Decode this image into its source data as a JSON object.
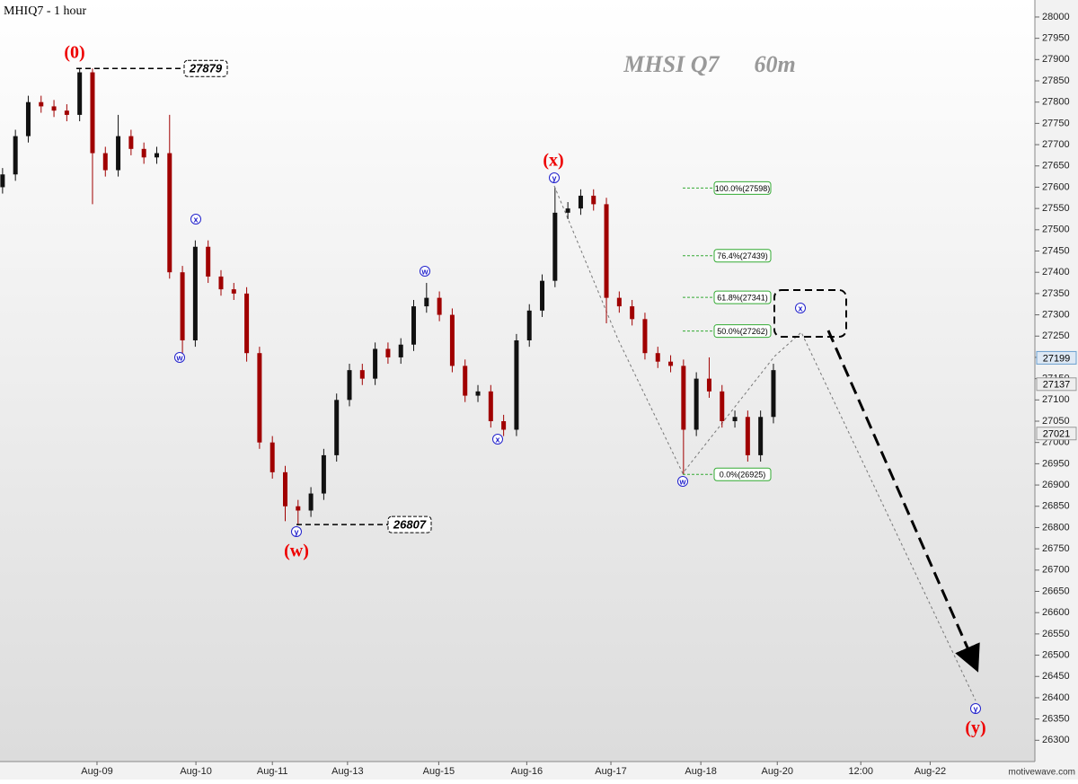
{
  "chart_data": {
    "type": "candlestick",
    "title": "MHSI Q7      60m",
    "symbol": "MHIQ7 - 1 hour",
    "watermark": "motivewave.com",
    "x": [
      0,
      2,
      4,
      6,
      8,
      10,
      12,
      14,
      16,
      18,
      20,
      22,
      24,
      26,
      28,
      30,
      32,
      34,
      36,
      38,
      40,
      42,
      44,
      46,
      48,
      50,
      52,
      54,
      56,
      58,
      60,
      62,
      64,
      66,
      68,
      70,
      72,
      74,
      76,
      78,
      80,
      82,
      84,
      86,
      88,
      90,
      92,
      94,
      96,
      98,
      100,
      102,
      104,
      106,
      108,
      110,
      112,
      114,
      116,
      118,
      120
    ],
    "open": [
      27600,
      27630,
      27720,
      27800,
      27790,
      27780,
      27770,
      27870,
      27680,
      27640,
      27720,
      27690,
      27670,
      27680,
      27400,
      27240,
      27460,
      27390,
      27360,
      27350,
      27210,
      27000,
      26930,
      26850,
      26840,
      26880,
      26970,
      27100,
      27170,
      27150,
      27220,
      27200,
      27230,
      27320,
      27340,
      27300,
      27180,
      27110,
      27120,
      27050,
      27030,
      27240,
      27310,
      27380,
      27540,
      27550,
      27580,
      27560,
      27340,
      27320,
      27290,
      27210,
      27190,
      27180,
      27030,
      27150,
      27120,
      27050,
      27060,
      26970,
      27060
    ],
    "high": [
      27645,
      27735,
      27815,
      27815,
      27805,
      27795,
      27879,
      27879,
      27695,
      27770,
      27735,
      27705,
      27695,
      27770,
      27415,
      27475,
      27475,
      27405,
      27375,
      27365,
      27225,
      27015,
      26945,
      26865,
      26895,
      26985,
      27115,
      27185,
      27185,
      27235,
      27235,
      27245,
      27335,
      27375,
      27355,
      27315,
      27195,
      27135,
      27135,
      27065,
      27255,
      27325,
      27395,
      27598,
      27565,
      27595,
      27595,
      27575,
      27355,
      27335,
      27305,
      27225,
      27205,
      27195,
      27165,
      27200,
      27135,
      27075,
      27075,
      27075,
      27185
    ],
    "low": [
      27585,
      27615,
      27705,
      27775,
      27765,
      27755,
      27755,
      27560,
      27625,
      27625,
      27675,
      27655,
      27655,
      27385,
      27200,
      27225,
      27375,
      27345,
      27335,
      27190,
      26985,
      26915,
      26815,
      26807,
      26825,
      26865,
      26955,
      27085,
      27135,
      27135,
      27185,
      27185,
      27215,
      27305,
      27285,
      27165,
      27095,
      27095,
      27035,
      27015,
      27015,
      27225,
      27295,
      27365,
      27525,
      27535,
      27545,
      27280,
      27305,
      27275,
      27195,
      27175,
      27165,
      26925,
      27015,
      27105,
      27035,
      27035,
      26955,
      26955,
      27045
    ],
    "close": [
      27630,
      27720,
      27800,
      27790,
      27780,
      27770,
      27870,
      27680,
      27640,
      27720,
      27690,
      27670,
      27680,
      27400,
      27240,
      27460,
      27390,
      27360,
      27350,
      27210,
      27000,
      26930,
      26850,
      26840,
      26880,
      26970,
      27100,
      27170,
      27150,
      27220,
      27200,
      27230,
      27320,
      27340,
      27300,
      27180,
      27110,
      27120,
      27050,
      27030,
      27240,
      27310,
      27380,
      27540,
      27550,
      27580,
      27560,
      27340,
      27320,
      27290,
      27210,
      27190,
      27180,
      27030,
      27150,
      27120,
      27050,
      27060,
      26970,
      27060,
      27170
    ],
    "up_color": "#111111",
    "down_color": "#a00000",
    "xlim": [
      -0.4,
      160.7
    ],
    "xticks": [
      {
        "value": 14.7,
        "label": "Aug-09"
      },
      {
        "value": 30.1,
        "label": "Aug-10"
      },
      {
        "value": 42,
        "label": "Aug-11"
      },
      {
        "value": 53.7,
        "label": "Aug-13"
      },
      {
        "value": 67.9,
        "label": "Aug-15"
      },
      {
        "value": 81.6,
        "label": "Aug-16"
      },
      {
        "value": 94.7,
        "label": "Aug-17"
      },
      {
        "value": 108.7,
        "label": "Aug-18"
      },
      {
        "value": 120.6,
        "label": "Aug-20"
      },
      {
        "value": 133.6,
        "label": "12:00"
      },
      {
        "value": 144.4,
        "label": "Aug-22"
      }
    ],
    "ylim": [
      26250,
      28040
    ],
    "yticks": [
      26300,
      26350,
      26400,
      26450,
      26500,
      26550,
      26600,
      26650,
      26700,
      26750,
      26800,
      26850,
      26900,
      26950,
      27000,
      27050,
      27100,
      27150,
      27200,
      27250,
      27300,
      27350,
      27400,
      27450,
      27500,
      27550,
      27600,
      27650,
      27700,
      27750,
      27800,
      27850,
      27900,
      27950,
      28000
    ],
    "price_tags": [
      27199,
      27137,
      27021
    ],
    "level_labels": [
      27879,
      26807
    ],
    "fib_levels": [
      {
        "value": 27598,
        "label": "100.0%(27598)"
      },
      {
        "value": 27439,
        "label": "76.4%(27439)"
      },
      {
        "value": 27341,
        "label": "61.8%(27341)"
      },
      {
        "value": 27262,
        "label": "50.0%(27262)"
      },
      {
        "value": 26925,
        "label": "0.0%(26925)"
      }
    ],
    "wave_labels": [
      "(0)",
      "(w)",
      "(x)",
      "(y)"
    ],
    "subwave_labels": [
      "x",
      "w",
      "y",
      "w",
      "x",
      "y",
      "w",
      "x",
      "y"
    ]
  }
}
